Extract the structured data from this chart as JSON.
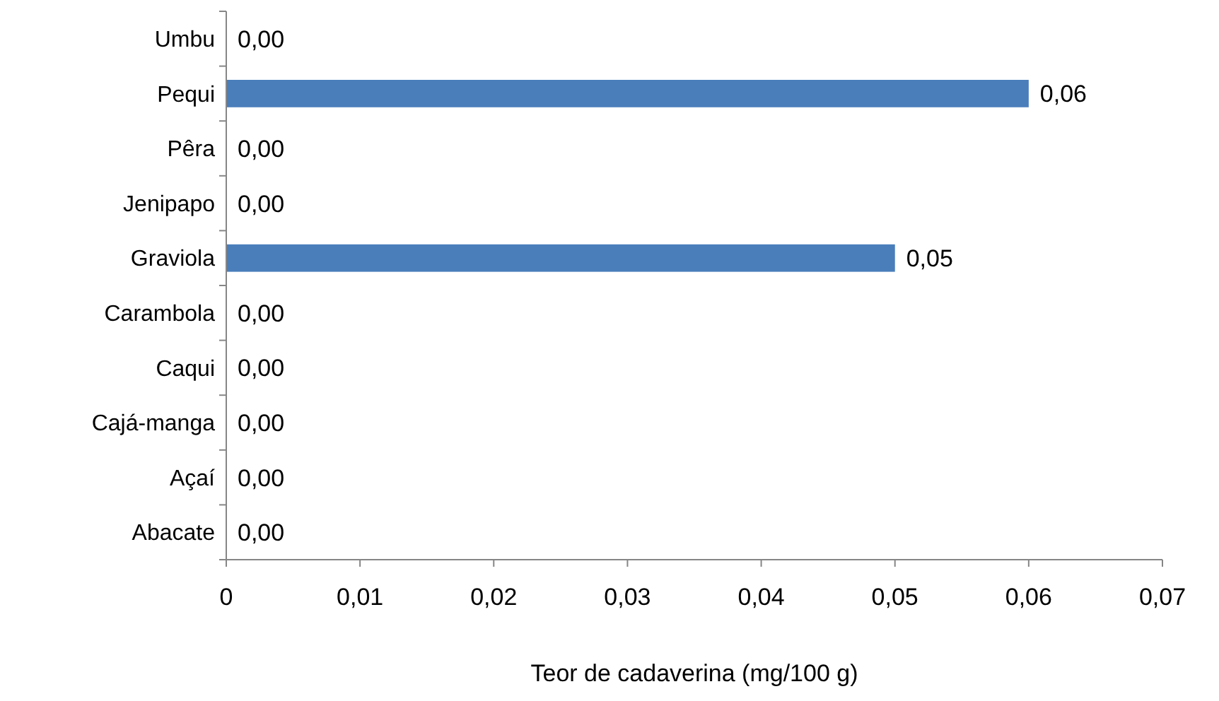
{
  "chart_data": {
    "type": "bar",
    "orientation": "horizontal",
    "xlabel": "Teor de cadaverina (mg/100 g)",
    "categories": [
      "Umbu",
      "Pequi",
      "Pêra",
      "Jenipapo",
      "Graviola",
      "Carambola",
      "Caqui",
      "Cajá-manga",
      "Açaí",
      "Abacate"
    ],
    "values": [
      0,
      0.06,
      0,
      0,
      0.05,
      0,
      0,
      0,
      0,
      0
    ],
    "value_labels": [
      "0,00",
      "0,06",
      "0,00",
      "0,00",
      "0,05",
      "0,00",
      "0,00",
      "0,00",
      "0,00",
      "0,00"
    ],
    "color": "#4a7ebb",
    "xlim": [
      0,
      0.07
    ],
    "xticks": [
      0,
      {
        "value": 0.01,
        "label": "0,01"
      },
      {
        "value": 0.02,
        "label": "0,02"
      },
      {
        "value": 0.03,
        "label": "0,03"
      },
      {
        "value": 0.04,
        "label": "0,04"
      },
      {
        "value": 0.05,
        "label": "0,05"
      },
      {
        "value": 0.06,
        "label": "0,06"
      },
      {
        "value": 0.07,
        "label": "0,07"
      }
    ],
    "grid": false
  }
}
